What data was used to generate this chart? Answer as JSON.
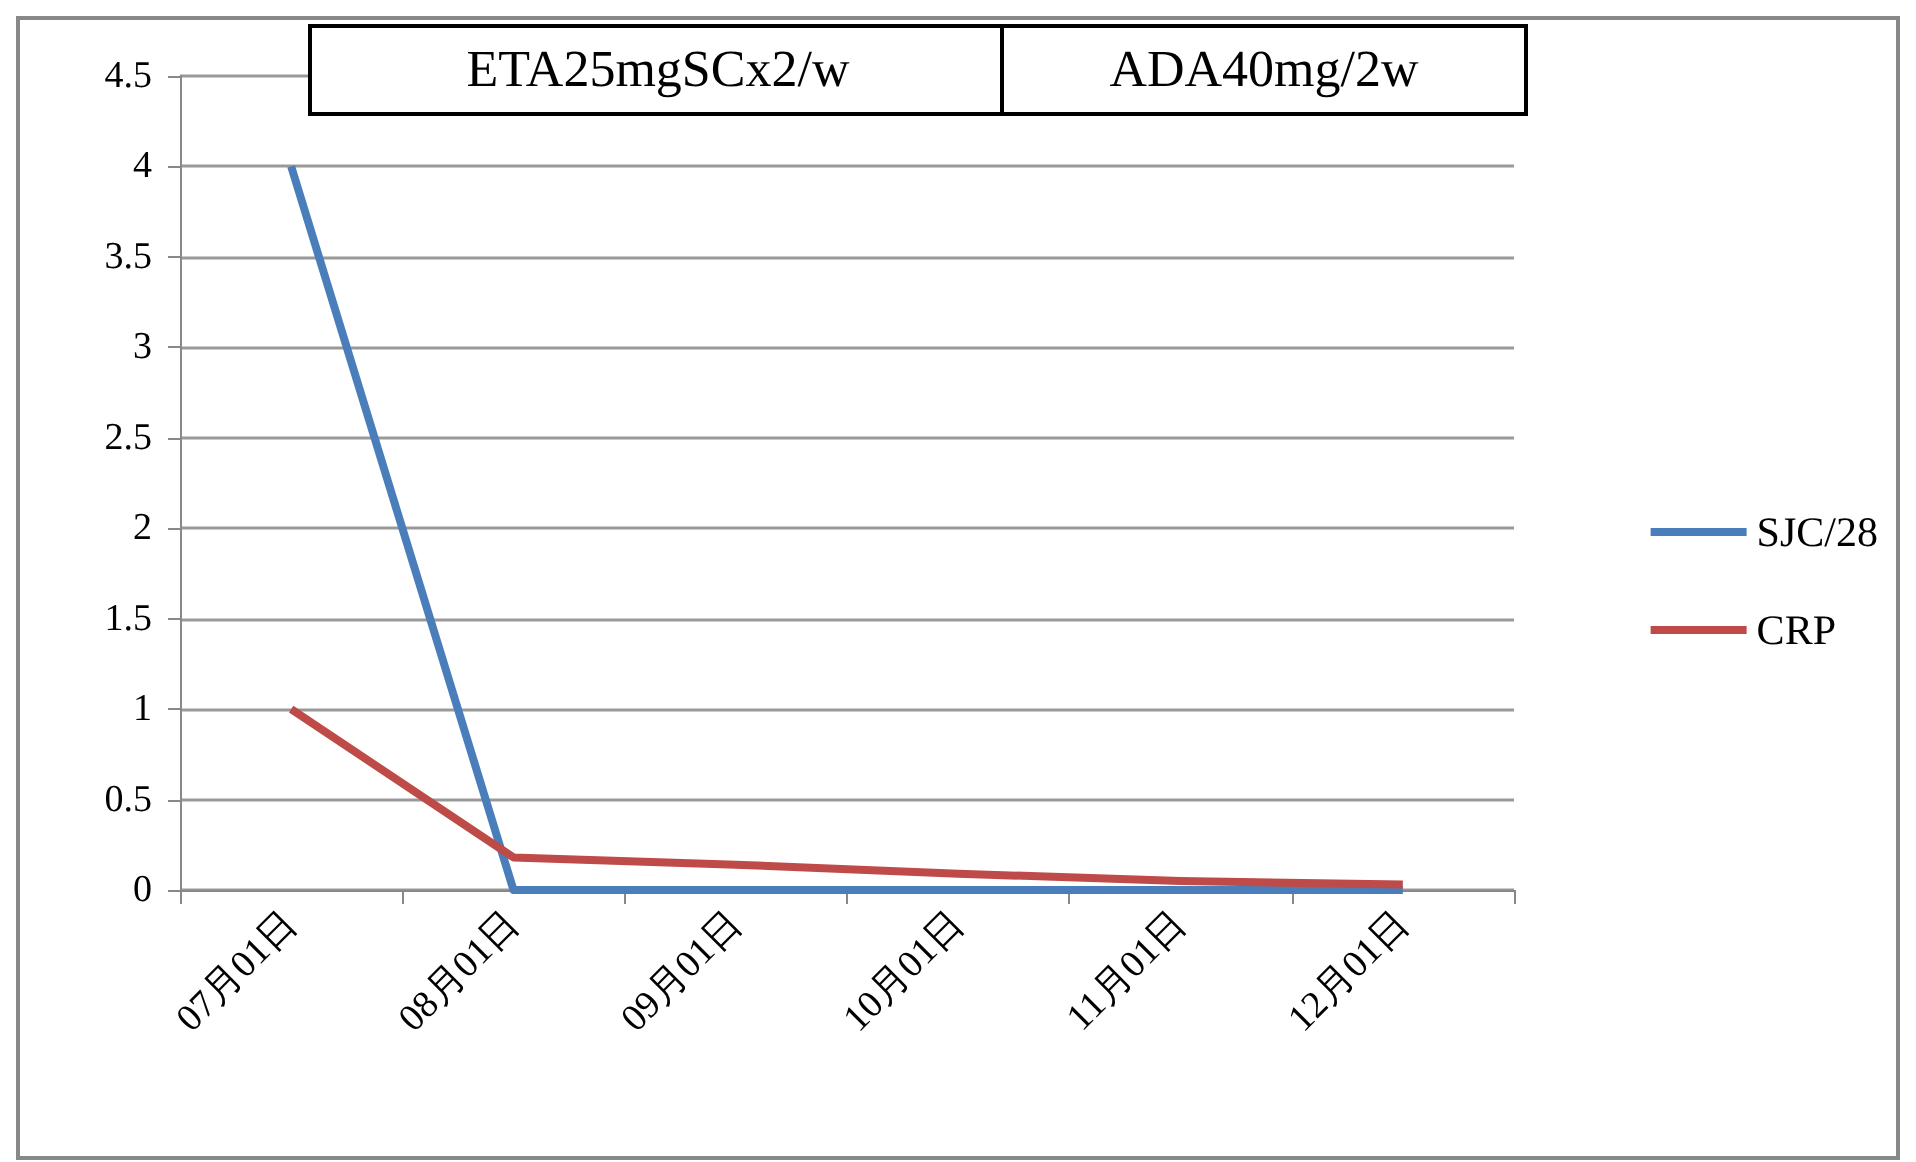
{
  "chart_data": {
    "type": "line",
    "categories": [
      "07月01日",
      "08月01日",
      "09月01日",
      "10月01日",
      "11月01日",
      "12月01日"
    ],
    "series": [
      {
        "name": "SJC/28",
        "color": "#4a7ebb",
        "values": [
          4,
          0,
          0,
          0,
          0,
          0
        ]
      },
      {
        "name": "CRP",
        "color": "#be4b48",
        "values": [
          1,
          0.18,
          0.14,
          0.09,
          0.05,
          0.03
        ]
      }
    ],
    "ylim": [
      0,
      4.5
    ],
    "yticks": [
      0,
      0.5,
      1,
      1.5,
      2,
      2.5,
      3,
      3.5,
      4,
      4.5
    ],
    "grid": "y",
    "legend": "right",
    "marker": "none",
    "line_style": "solid",
    "annotations": [
      "ETA25mgSCx2/w",
      "ADA40mg/2w"
    ]
  }
}
